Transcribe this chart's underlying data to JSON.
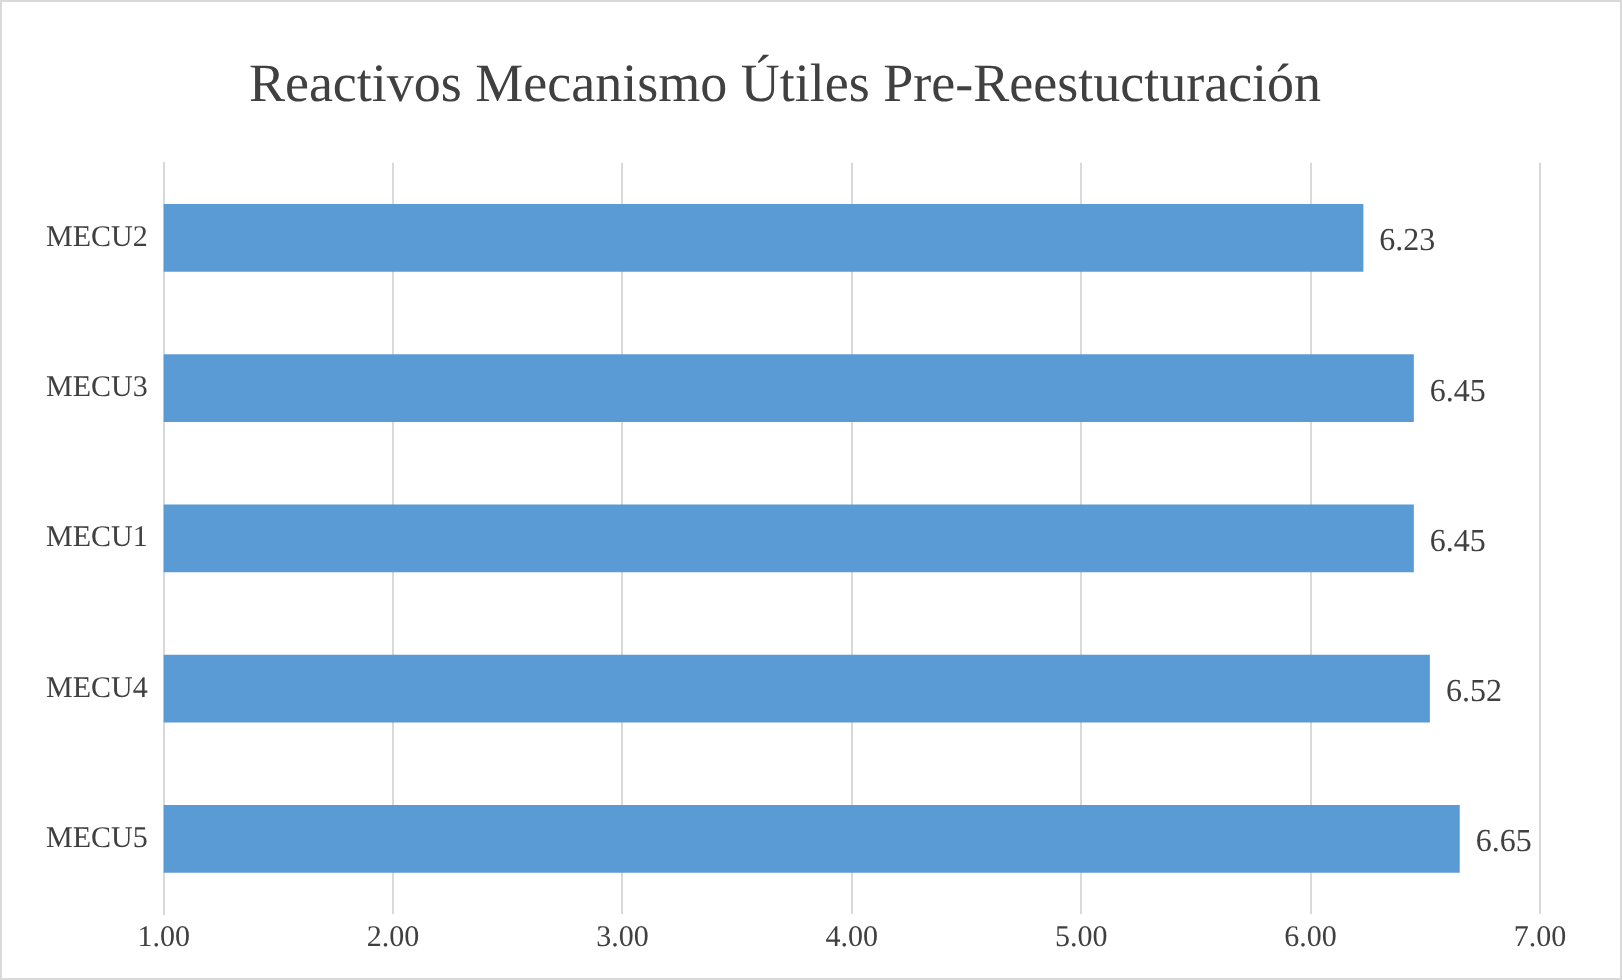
{
  "chart_data": {
    "type": "bar",
    "orientation": "horizontal",
    "title": "Reactivos Mecanismo Útiles Pre-Reestucturación",
    "categories": [
      "MECU2",
      "MECU3",
      "MECU1",
      "MECU4",
      "MECU5"
    ],
    "values": [
      6.23,
      6.45,
      6.45,
      6.52,
      6.65
    ],
    "color": "#5b9bd5",
    "xlim": [
      1,
      7
    ],
    "xticks": [
      {
        "value": 1,
        "label": "1.00"
      },
      {
        "value": 2,
        "label": "2.00"
      },
      {
        "value": 3,
        "label": "3.00"
      },
      {
        "value": 4,
        "label": "4.00"
      },
      {
        "value": 5,
        "label": "5.00"
      },
      {
        "value": 6,
        "label": "6.00"
      },
      {
        "value": 7,
        "label": "7.00"
      }
    ],
    "grid": "x",
    "data_labels": true,
    "legend": false
  }
}
